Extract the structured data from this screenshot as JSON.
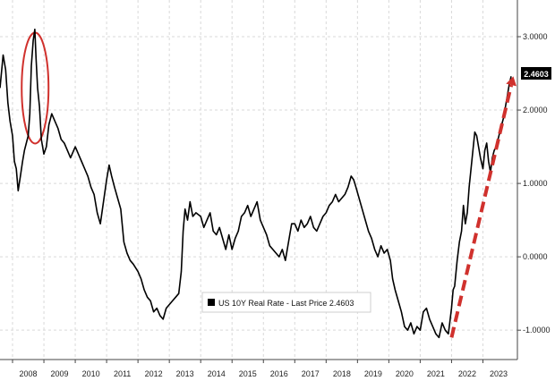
{
  "chart_data": {
    "type": "line",
    "title": "",
    "xlabel": "",
    "ylabel": "",
    "ylim": [
      -1.4,
      3.5
    ],
    "y_ticks": [
      -1.0,
      0.0,
      1.0,
      2.0,
      3.0
    ],
    "y_tick_labels": [
      "-1.0000",
      "0.0000",
      "1.0000",
      "2.0000",
      "3.0000"
    ],
    "x_ticks": [
      "2008",
      "2009",
      "2010",
      "2011",
      "2012",
      "2013",
      "2014",
      "2015",
      "2016",
      "2017",
      "2018",
      "2019",
      "2020",
      "2021",
      "2022",
      "2023"
    ],
    "xlim": [
      2007.6,
      2024.1
    ],
    "grid": true,
    "legend": {
      "label": "US 10Y Real Rate - Last Price 2.4603",
      "placement": "bottom-center"
    },
    "last_price_label": "2.4603",
    "colors": {
      "series": "#000000",
      "highlight_ellipse": "#d0312d",
      "arrow": "#d0312d",
      "price_badge": "#000000"
    },
    "series": [
      {
        "name": "US 10Y Real Rate",
        "points": [
          [
            2007.6,
            2.3
          ],
          [
            2007.7,
            2.75
          ],
          [
            2007.78,
            2.55
          ],
          [
            2007.85,
            2.1
          ],
          [
            2007.92,
            1.85
          ],
          [
            2008.0,
            1.65
          ],
          [
            2008.06,
            1.3
          ],
          [
            2008.12,
            1.2
          ],
          [
            2008.18,
            0.9
          ],
          [
            2008.25,
            1.1
          ],
          [
            2008.32,
            1.3
          ],
          [
            2008.38,
            1.45
          ],
          [
            2008.44,
            1.55
          ],
          [
            2008.5,
            1.65
          ],
          [
            2008.55,
            1.95
          ],
          [
            2008.6,
            2.6
          ],
          [
            2008.66,
            2.95
          ],
          [
            2008.71,
            3.1
          ],
          [
            2008.75,
            2.7
          ],
          [
            2008.8,
            2.3
          ],
          [
            2008.86,
            2.05
          ],
          [
            2008.92,
            1.6
          ],
          [
            2009.0,
            1.4
          ],
          [
            2009.08,
            1.5
          ],
          [
            2009.16,
            1.8
          ],
          [
            2009.25,
            1.95
          ],
          [
            2009.35,
            1.85
          ],
          [
            2009.45,
            1.75
          ],
          [
            2009.55,
            1.6
          ],
          [
            2009.65,
            1.55
          ],
          [
            2009.75,
            1.45
          ],
          [
            2009.85,
            1.35
          ],
          [
            2010.0,
            1.5
          ],
          [
            2010.1,
            1.4
          ],
          [
            2010.2,
            1.3
          ],
          [
            2010.3,
            1.2
          ],
          [
            2010.4,
            1.1
          ],
          [
            2010.5,
            0.95
          ],
          [
            2010.6,
            0.85
          ],
          [
            2010.7,
            0.6
          ],
          [
            2010.8,
            0.45
          ],
          [
            2010.9,
            0.75
          ],
          [
            2011.0,
            1.05
          ],
          [
            2011.08,
            1.25
          ],
          [
            2011.16,
            1.1
          ],
          [
            2011.25,
            0.95
          ],
          [
            2011.35,
            0.8
          ],
          [
            2011.45,
            0.65
          ],
          [
            2011.55,
            0.2
          ],
          [
            2011.65,
            0.05
          ],
          [
            2011.75,
            -0.05
          ],
          [
            2011.85,
            -0.1
          ],
          [
            2012.0,
            -0.2
          ],
          [
            2012.1,
            -0.3
          ],
          [
            2012.2,
            -0.45
          ],
          [
            2012.3,
            -0.55
          ],
          [
            2012.4,
            -0.6
          ],
          [
            2012.5,
            -0.75
          ],
          [
            2012.6,
            -0.7
          ],
          [
            2012.7,
            -0.8
          ],
          [
            2012.8,
            -0.85
          ],
          [
            2012.9,
            -0.7
          ],
          [
            2013.0,
            -0.65
          ],
          [
            2013.1,
            -0.6
          ],
          [
            2013.2,
            -0.55
          ],
          [
            2013.3,
            -0.5
          ],
          [
            2013.38,
            -0.2
          ],
          [
            2013.44,
            0.35
          ],
          [
            2013.5,
            0.65
          ],
          [
            2013.58,
            0.5
          ],
          [
            2013.66,
            0.75
          ],
          [
            2013.75,
            0.55
          ],
          [
            2013.85,
            0.6
          ],
          [
            2014.0,
            0.55
          ],
          [
            2014.1,
            0.4
          ],
          [
            2014.2,
            0.5
          ],
          [
            2014.3,
            0.6
          ],
          [
            2014.4,
            0.35
          ],
          [
            2014.5,
            0.3
          ],
          [
            2014.6,
            0.4
          ],
          [
            2014.7,
            0.25
          ],
          [
            2014.8,
            0.1
          ],
          [
            2014.9,
            0.3
          ],
          [
            2015.0,
            0.1
          ],
          [
            2015.1,
            0.25
          ],
          [
            2015.2,
            0.35
          ],
          [
            2015.3,
            0.55
          ],
          [
            2015.4,
            0.6
          ],
          [
            2015.5,
            0.7
          ],
          [
            2015.6,
            0.55
          ],
          [
            2015.7,
            0.65
          ],
          [
            2015.8,
            0.75
          ],
          [
            2015.9,
            0.5
          ],
          [
            2016.0,
            0.4
          ],
          [
            2016.1,
            0.3
          ],
          [
            2016.2,
            0.15
          ],
          [
            2016.3,
            0.1
          ],
          [
            2016.4,
            0.05
          ],
          [
            2016.5,
            0.0
          ],
          [
            2016.6,
            0.1
          ],
          [
            2016.7,
            -0.05
          ],
          [
            2016.8,
            0.2
          ],
          [
            2016.9,
            0.45
          ],
          [
            2017.0,
            0.45
          ],
          [
            2017.1,
            0.35
          ],
          [
            2017.2,
            0.5
          ],
          [
            2017.3,
            0.4
          ],
          [
            2017.4,
            0.45
          ],
          [
            2017.5,
            0.55
          ],
          [
            2017.6,
            0.4
          ],
          [
            2017.7,
            0.35
          ],
          [
            2017.8,
            0.45
          ],
          [
            2017.9,
            0.55
          ],
          [
            2018.0,
            0.6
          ],
          [
            2018.1,
            0.7
          ],
          [
            2018.2,
            0.75
          ],
          [
            2018.3,
            0.85
          ],
          [
            2018.4,
            0.75
          ],
          [
            2018.5,
            0.8
          ],
          [
            2018.6,
            0.85
          ],
          [
            2018.7,
            0.95
          ],
          [
            2018.8,
            1.1
          ],
          [
            2018.88,
            1.05
          ],
          [
            2018.95,
            0.95
          ],
          [
            2019.05,
            0.8
          ],
          [
            2019.15,
            0.65
          ],
          [
            2019.25,
            0.5
          ],
          [
            2019.35,
            0.35
          ],
          [
            2019.45,
            0.25
          ],
          [
            2019.55,
            0.1
          ],
          [
            2019.65,
            0.0
          ],
          [
            2019.75,
            0.15
          ],
          [
            2019.85,
            0.05
          ],
          [
            2019.95,
            0.1
          ],
          [
            2020.05,
            -0.05
          ],
          [
            2020.12,
            -0.3
          ],
          [
            2020.2,
            -0.45
          ],
          [
            2020.3,
            -0.6
          ],
          [
            2020.4,
            -0.75
          ],
          [
            2020.5,
            -0.95
          ],
          [
            2020.6,
            -1.0
          ],
          [
            2020.7,
            -0.9
          ],
          [
            2020.8,
            -1.05
          ],
          [
            2020.9,
            -0.95
          ],
          [
            2021.0,
            -1.0
          ],
          [
            2021.1,
            -0.75
          ],
          [
            2021.2,
            -0.7
          ],
          [
            2021.3,
            -0.85
          ],
          [
            2021.4,
            -0.95
          ],
          [
            2021.5,
            -1.05
          ],
          [
            2021.6,
            -1.1
          ],
          [
            2021.7,
            -0.9
          ],
          [
            2021.8,
            -1.0
          ],
          [
            2021.9,
            -1.05
          ],
          [
            2022.0,
            -0.7
          ],
          [
            2022.05,
            -0.45
          ],
          [
            2022.1,
            -0.4
          ],
          [
            2022.18,
            -0.05
          ],
          [
            2022.25,
            0.2
          ],
          [
            2022.32,
            0.35
          ],
          [
            2022.38,
            0.7
          ],
          [
            2022.44,
            0.45
          ],
          [
            2022.5,
            0.6
          ],
          [
            2022.56,
            0.95
          ],
          [
            2022.62,
            1.2
          ],
          [
            2022.68,
            1.45
          ],
          [
            2022.74,
            1.7
          ],
          [
            2022.8,
            1.65
          ],
          [
            2022.86,
            1.5
          ],
          [
            2022.92,
            1.35
          ],
          [
            2023.0,
            1.2
          ],
          [
            2023.06,
            1.45
          ],
          [
            2023.12,
            1.55
          ],
          [
            2023.18,
            1.3
          ],
          [
            2023.24,
            1.15
          ],
          [
            2023.3,
            1.35
          ],
          [
            2023.36,
            1.45
          ],
          [
            2023.42,
            1.5
          ],
          [
            2023.48,
            1.6
          ],
          [
            2023.54,
            1.7
          ],
          [
            2023.6,
            1.8
          ],
          [
            2023.66,
            1.9
          ],
          [
            2023.72,
            2.05
          ],
          [
            2023.78,
            2.2
          ],
          [
            2023.84,
            2.35
          ],
          [
            2023.9,
            2.46
          ]
        ]
      }
    ]
  }
}
